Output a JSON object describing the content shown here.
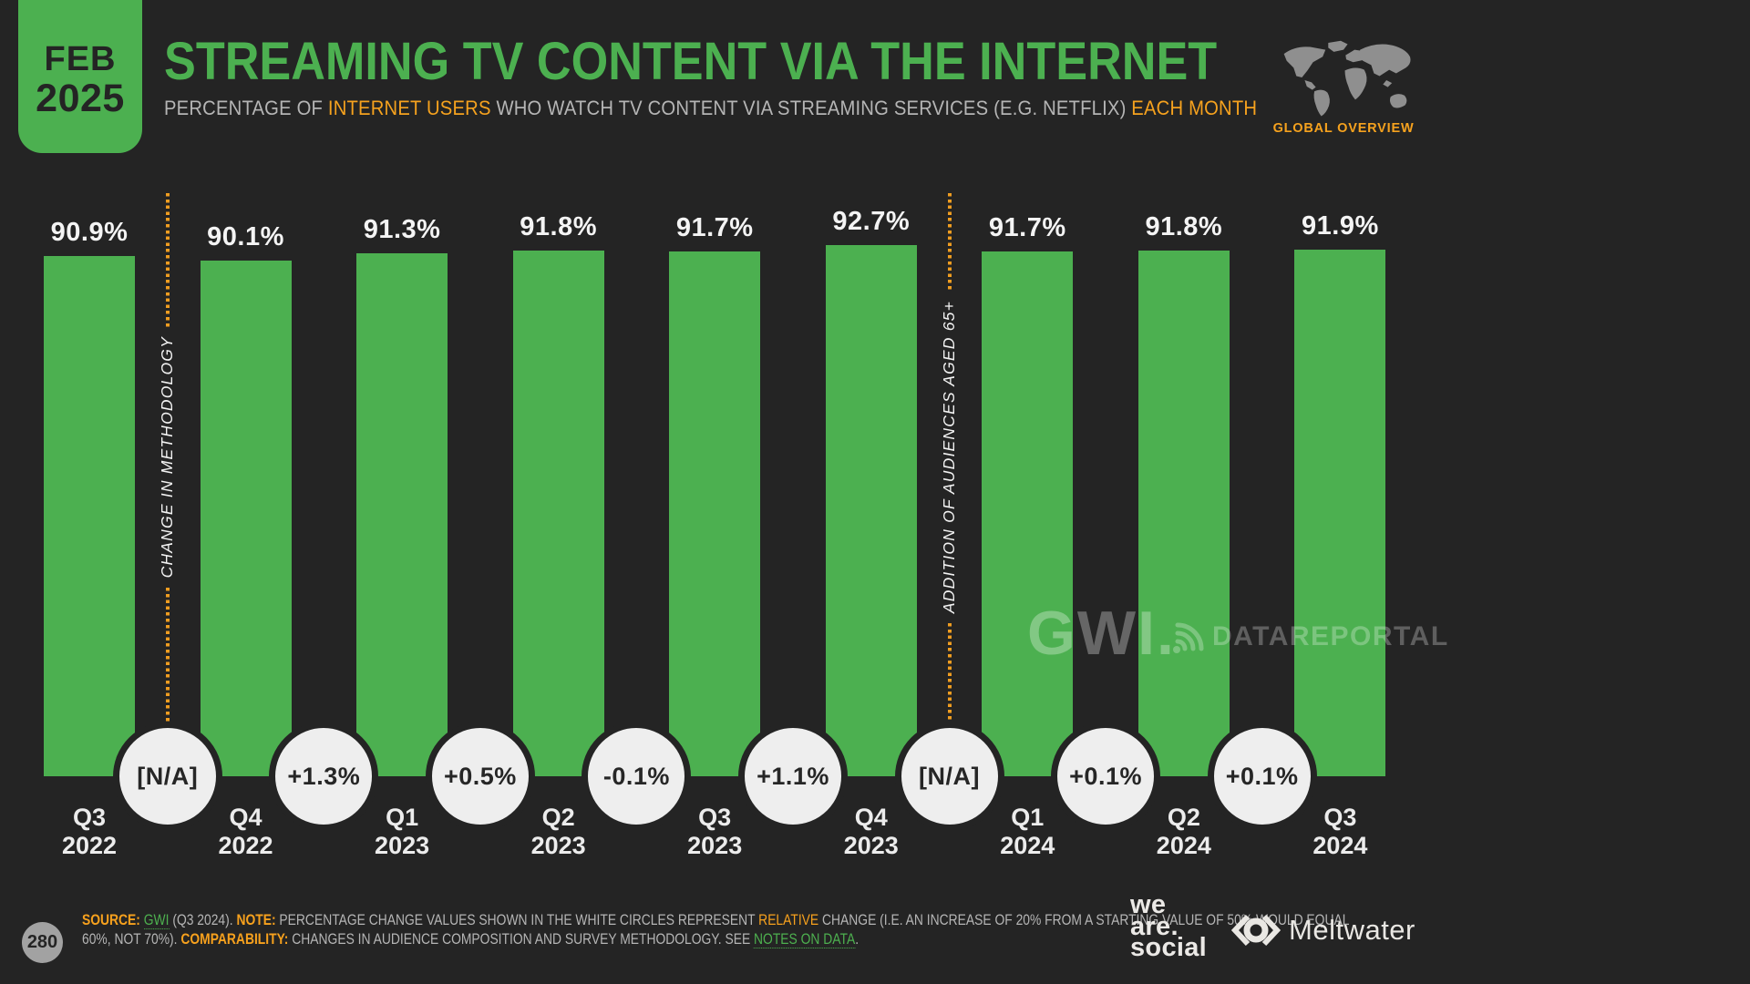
{
  "header": {
    "badge": {
      "month": "FEB",
      "year": "2025"
    },
    "title": "STREAMING TV CONTENT VIA THE INTERNET",
    "subtitle_parts": [
      {
        "text": "PERCENTAGE OF ",
        "style": "normal"
      },
      {
        "text": "INTERNET USERS",
        "style": "accent"
      },
      {
        "text": " WHO WATCH TV CONTENT VIA STREAMING SERVICES (E.G. NETFLIX) ",
        "style": "normal"
      },
      {
        "text": "EACH MONTH",
        "style": "accent"
      }
    ],
    "global_overview_label": "GLOBAL OVERVIEW"
  },
  "chart_data": {
    "type": "bar",
    "title": "STREAMING TV CONTENT VIA THE INTERNET",
    "subtitle": "PERCENTAGE OF INTERNET USERS WHO WATCH TV CONTENT VIA STREAMING SERVICES (E.G. NETFLIX) EACH MONTH",
    "categories": [
      "Q3 2022",
      "Q4 2022",
      "Q1 2023",
      "Q2 2023",
      "Q3 2023",
      "Q4 2023",
      "Q1 2024",
      "Q2 2024",
      "Q3 2024"
    ],
    "values": [
      90.9,
      90.1,
      91.3,
      91.8,
      91.7,
      92.7,
      91.7,
      91.8,
      91.9
    ],
    "value_labels": [
      "90.9%",
      "90.1%",
      "91.3%",
      "91.8%",
      "91.7%",
      "92.7%",
      "91.7%",
      "91.8%",
      "91.9%"
    ],
    "unit": "%",
    "change_labels": [
      "[N/A]",
      "+1.3%",
      "+0.5%",
      "-0.1%",
      "+1.1%",
      "[N/A]",
      "+0.1%",
      "+0.1%"
    ],
    "annotations": [
      {
        "after_index": 0,
        "label": "CHANGE IN METHODOLOGY"
      },
      {
        "after_index": 5,
        "label": "ADDITION OF AUDIENCES AGED 65+"
      }
    ],
    "bar_color": "#4cb050",
    "ylim": [
      0,
      100
    ],
    "grid": false,
    "legend": "none"
  },
  "watermarks": {
    "gwi": "GWI.",
    "datareportal": "DATAREPORTAL"
  },
  "footer": {
    "page_number": "280",
    "line1_parts": [
      {
        "text": "SOURCE:",
        "style": "label"
      },
      {
        "text": " ",
        "style": "normal"
      },
      {
        "text": "GWI",
        "style": "link"
      },
      {
        "text": " (Q3 2024). ",
        "style": "normal"
      },
      {
        "text": "NOTE:",
        "style": "label"
      },
      {
        "text": " PERCENTAGE CHANGE VALUES SHOWN IN THE WHITE CIRCLES REPRESENT ",
        "style": "normal"
      },
      {
        "text": "RELATIVE",
        "style": "accent"
      },
      {
        "text": " CHANGE (I.E. AN INCREASE OF 20% FROM A STARTING VALUE OF 50% WOULD EQUAL",
        "style": "normal"
      }
    ],
    "line2_parts": [
      {
        "text": "60%, NOT 70%). ",
        "style": "normal"
      },
      {
        "text": "COMPARABILITY:",
        "style": "label"
      },
      {
        "text": " CHANGES IN AUDIENCE COMPOSITION AND SURVEY METHODOLOGY. SEE ",
        "style": "normal"
      },
      {
        "text": "NOTES ON DATA",
        "style": "link"
      },
      {
        "text": ".",
        "style": "normal"
      }
    ],
    "we_are_social_lines": [
      "we",
      "are.",
      "social"
    ],
    "meltwater_label": "Meltwater"
  },
  "colors": {
    "background": "#242424",
    "bar_green": "#4cb050",
    "accent_orange": "#f6a21e",
    "dotted_line_orange": "#ef9d20",
    "circle_fill": "#eeeeee",
    "text_light": "#f1f1f1",
    "footnote_gray": "#b5b5b5"
  }
}
